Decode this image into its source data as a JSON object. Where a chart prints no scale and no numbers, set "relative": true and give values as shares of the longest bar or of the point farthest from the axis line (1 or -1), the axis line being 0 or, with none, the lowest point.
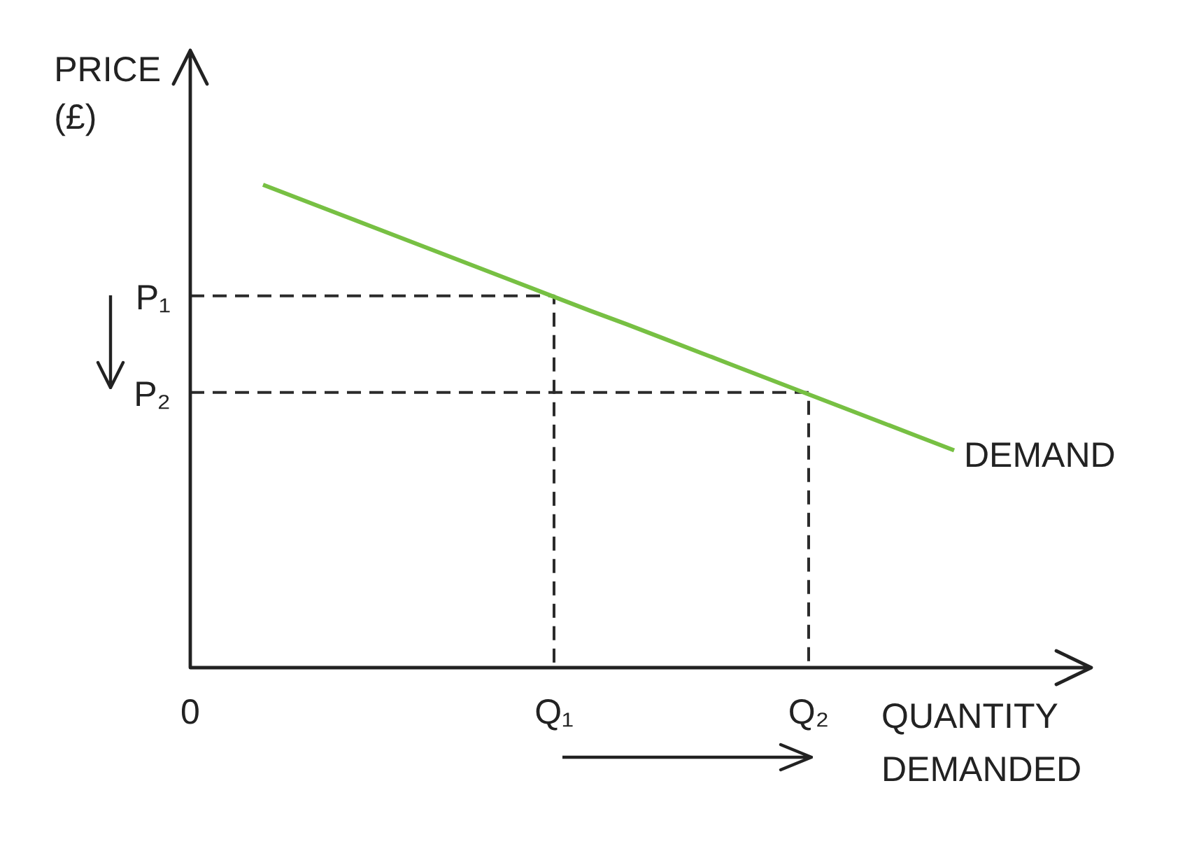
{
  "chart_data": {
    "type": "line",
    "relative": true,
    "xlabel": "QUANTITY DEMANDED",
    "ylabel": "PRICE (£)",
    "categories": [
      "0",
      null,
      null,
      null,
      null,
      null,
      null,
      null,
      null,
      null,
      "Q₁",
      null,
      null,
      null,
      null,
      null,
      null,
      "Q₂",
      null,
      null,
      null,
      null
    ],
    "series": [
      {
        "name": "DEMAND",
        "color": "#77c043",
        "values": [
          null,
          null,
          1,
          0.971,
          0.942,
          0.913,
          0.884,
          0.855,
          0.826,
          0.797,
          0.768,
          0.739,
          0.711,
          0.682,
          0.653,
          0.624,
          0.595,
          0.566,
          0.537,
          0.508,
          0.479,
          0.45
        ]
      },
      {
        "color": "#2b2b2b",
        "line_style": "dashed",
        "x": [
          "0",
          "Q₁",
          "Q₁"
        ],
        "values": [
          0.77,
          0.77,
          0
        ]
      },
      {
        "color": "#2b2b2b",
        "line_style": "dashed",
        "x": [
          "0",
          "Q₂",
          "Q₂"
        ],
        "values": [
          0.57,
          0.57,
          0
        ]
      }
    ],
    "annotations": [
      {
        "text": "P₁",
        "x": "0",
        "y": 0.77
      },
      {
        "text": "P₂",
        "x": "0",
        "y": 0.57
      }
    ]
  }
}
